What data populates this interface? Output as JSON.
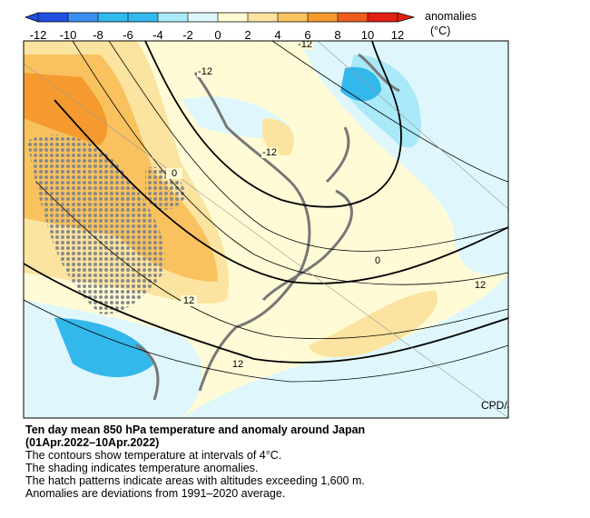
{
  "colorbar": {
    "label": "anomalies",
    "unit": "(°C)",
    "ticks": [
      -12,
      -10,
      -8,
      -6,
      -4,
      -2,
      0,
      2,
      4,
      6,
      8,
      10,
      12
    ],
    "colors": [
      "#2050e0",
      "#3c8ff0",
      "#33b8ec",
      "#33b8ec",
      "#a9e9f8",
      "#dff7fc",
      "#fffbd2",
      "#fbe3a0",
      "#f9c25e",
      "#f59a2e",
      "#ef5e1e",
      "#e02010"
    ]
  },
  "map": {
    "contour_labels": [
      "-12",
      "-12",
      "-12",
      "0",
      "0",
      "12",
      "12",
      "12"
    ],
    "credit": "CPD/JMA"
  },
  "caption": {
    "title": "Ten day mean 850 hPa temperature and anomaly around Japan",
    "period": "(01Apr.2022–10Apr.2022)",
    "lines": [
      "The contours show temperature at intervals of 4°C.",
      "The shading indicates temperature anomalies.",
      "The hatch patterns indicate areas with altitudes exceeding 1,600 m.",
      "Anomalies are deviations from 1991–2020 average."
    ]
  }
}
